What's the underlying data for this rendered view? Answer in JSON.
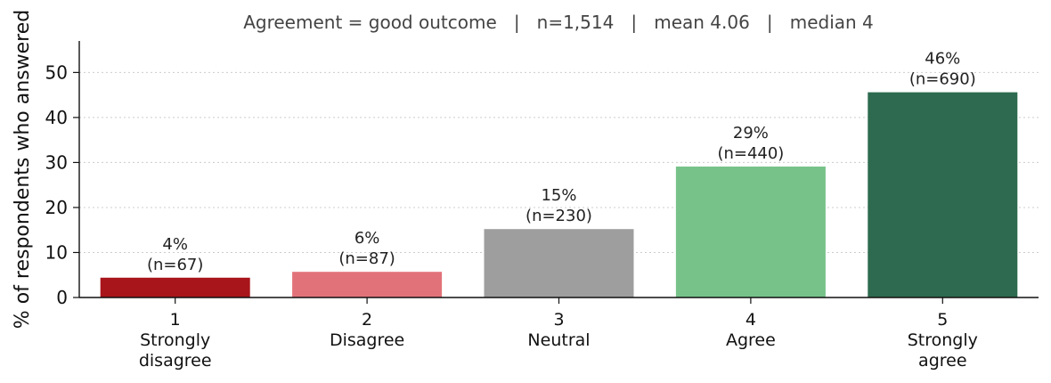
{
  "chart_data": {
    "type": "bar",
    "title": "Agreement = good outcome   |   n=1,514   |   mean 4.06   |   median 4",
    "xlabel": "",
    "ylabel": "% of respondents who answered",
    "ylim": [
      0,
      57
    ],
    "yticks": [
      "0",
      "10",
      "20",
      "30",
      "40",
      "50"
    ],
    "grid": "horizontal dotted",
    "legend": "none",
    "categories": [
      {
        "code": "1",
        "label_lines": [
          "Strongly",
          "disagree"
        ]
      },
      {
        "code": "2",
        "label_lines": [
          "Disagree"
        ]
      },
      {
        "code": "3",
        "label_lines": [
          "Neutral"
        ]
      },
      {
        "code": "4",
        "label_lines": [
          "Agree"
        ]
      },
      {
        "code": "5",
        "label_lines": [
          "Strongly",
          "agree"
        ]
      }
    ],
    "values": [
      4.4,
      5.7,
      15.2,
      29.1,
      45.6
    ],
    "pct_labels": [
      "4%",
      "6%",
      "15%",
      "29%",
      "46%"
    ],
    "n_labels": [
      "(n=67)",
      "(n=87)",
      "(n=230)",
      "(n=440)",
      "(n=690)"
    ],
    "colors": [
      "#a8151b",
      "#e2727a",
      "#9e9e9e",
      "#77c289",
      "#2d6a4f"
    ]
  }
}
